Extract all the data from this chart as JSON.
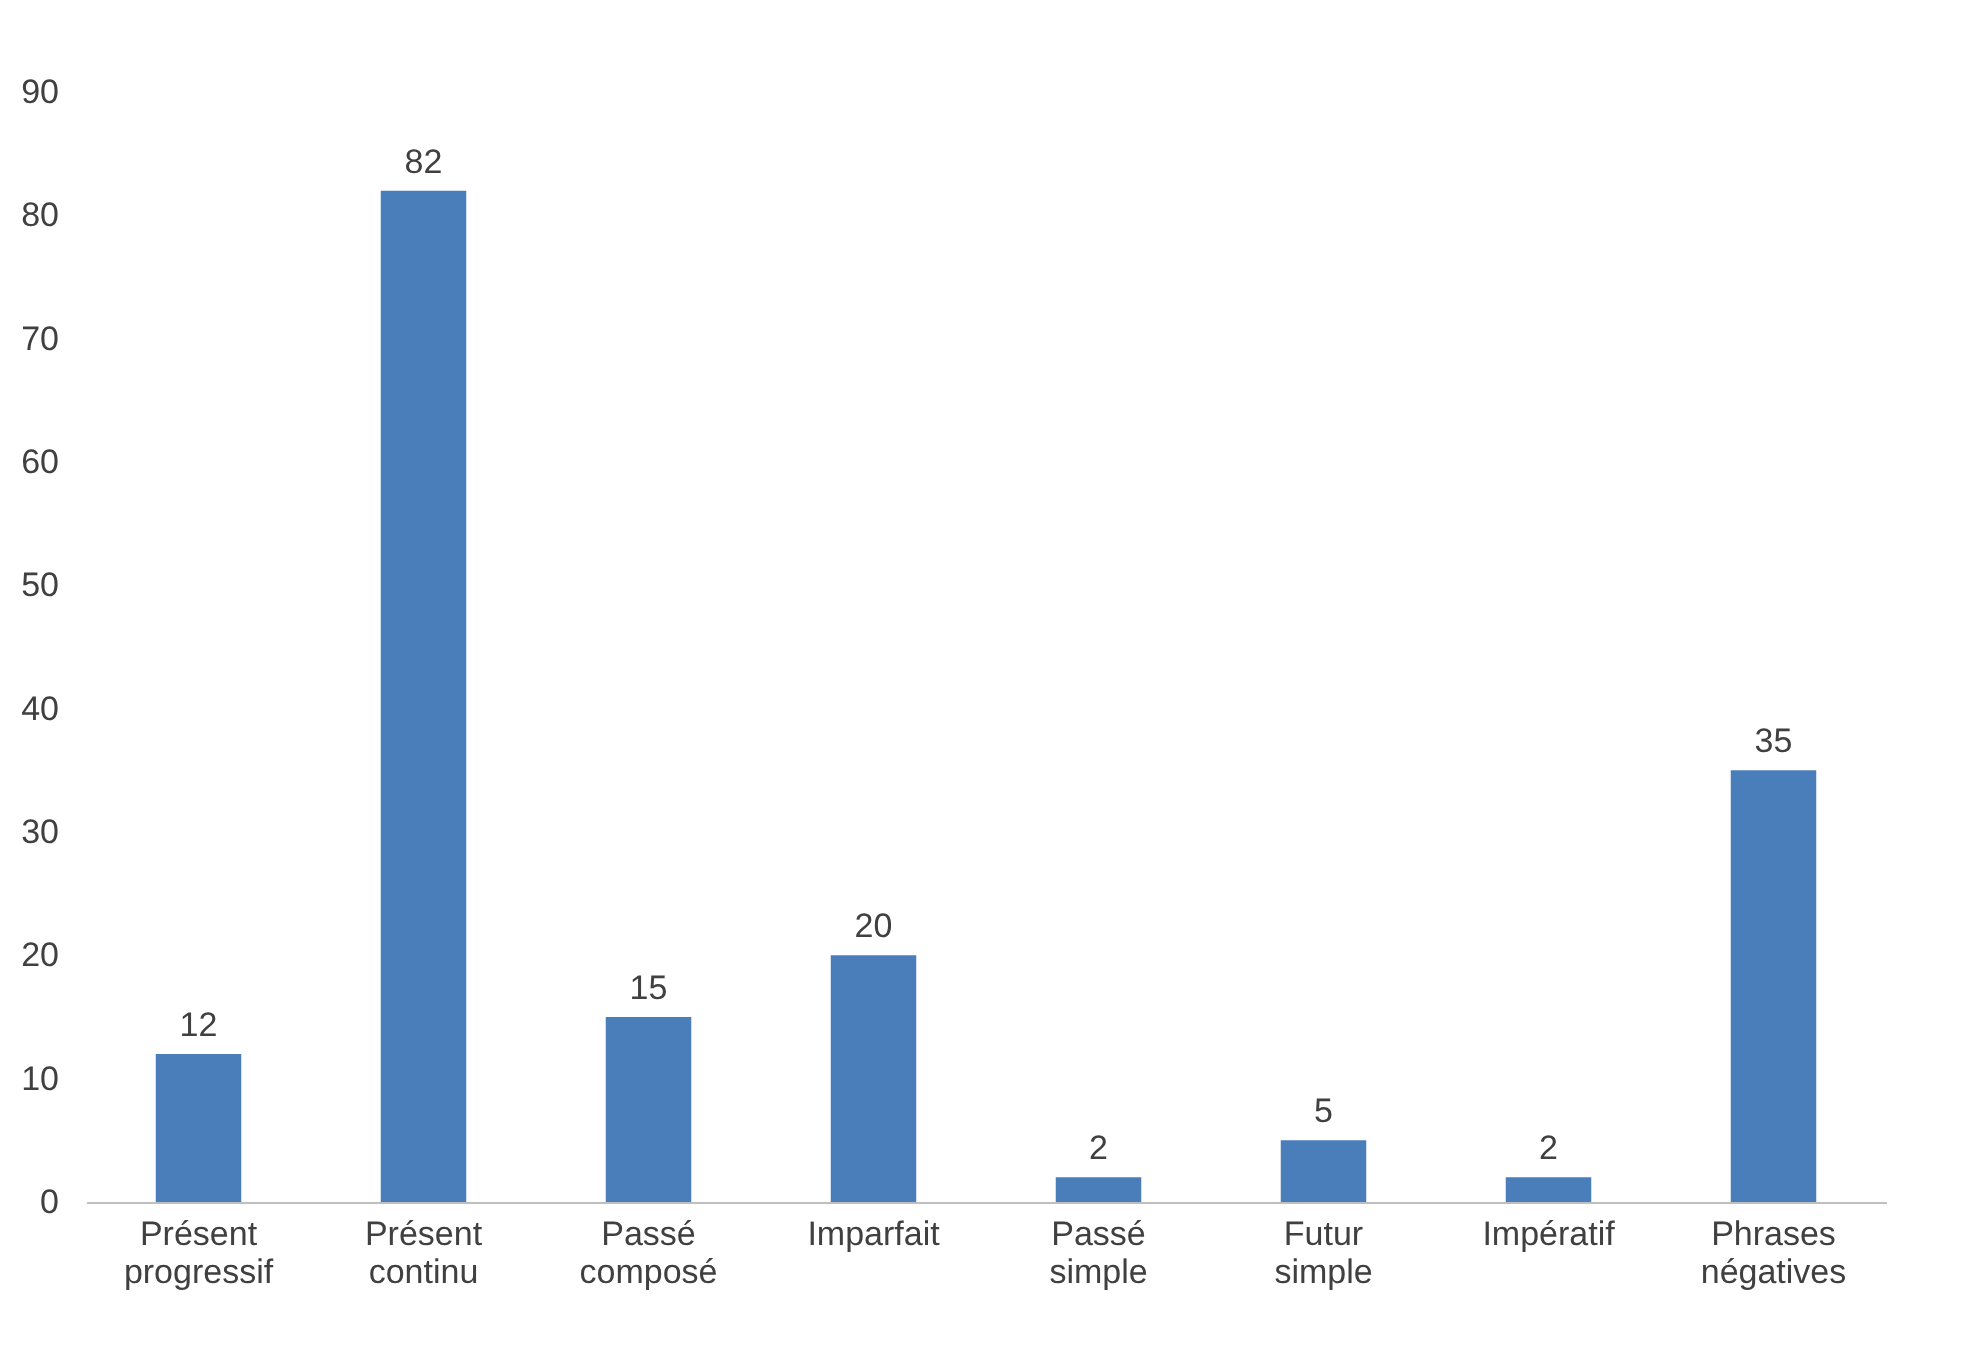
{
  "chart_data": {
    "type": "bar",
    "categories": [
      "Présent progressif",
      "Présent continu",
      "Passé composé",
      "Imparfait",
      "Passé simple",
      "Futur simple",
      "Impératif",
      "Phrases négatives"
    ],
    "values": [
      12,
      82,
      15,
      20,
      2,
      5,
      2,
      35
    ],
    "color": "#4a7ebb",
    "ylim": [
      0,
      90
    ],
    "yticks": [
      0,
      10,
      20,
      30,
      40,
      50,
      60,
      70,
      80,
      90
    ],
    "data_labels": true,
    "grid": false
  }
}
